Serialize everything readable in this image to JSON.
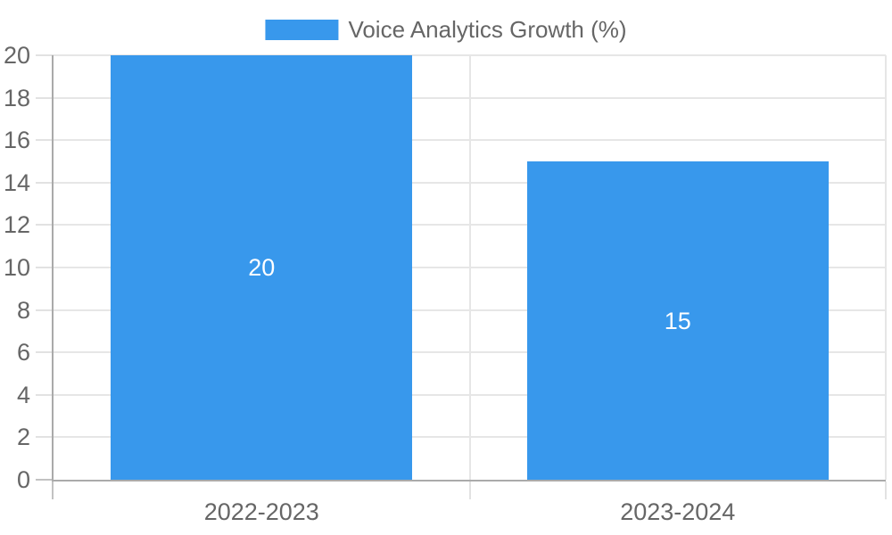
{
  "chart_data": {
    "type": "bar",
    "title": "",
    "legend": {
      "position": "top",
      "label": "Voice Analytics Growth (%)"
    },
    "categories": [
      "2022-2023",
      "2023-2024"
    ],
    "series": [
      {
        "name": "Voice Analytics Growth (%)",
        "values": [
          20,
          15
        ]
      }
    ],
    "data_labels": [
      "20",
      "15"
    ],
    "data_label_position": "center",
    "xlabel": "",
    "ylabel": "",
    "ylim": [
      0,
      20
    ],
    "yticks": [
      0,
      2,
      4,
      6,
      8,
      10,
      12,
      14,
      16,
      18,
      20
    ],
    "grid": true
  },
  "colors": {
    "bar": "#3898ec",
    "text": "#666666",
    "gridline": "#e6e6e6",
    "axis": "#aaaaaa",
    "tick": "#e2e2e2",
    "tick_edge": "#c2c2c2",
    "data_label": "#ffffff",
    "background": "#ffffff"
  }
}
